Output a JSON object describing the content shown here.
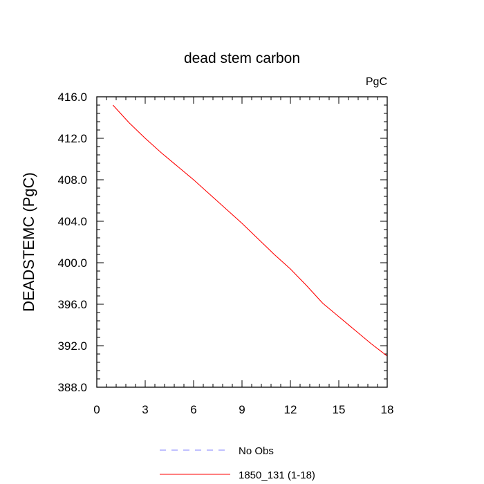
{
  "chart_data": {
    "type": "line",
    "title": "dead stem carbon",
    "units_label": "PgC",
    "xlabel": "",
    "ylabel": "DEADSTEMC  (PgC)",
    "xlim": [
      0,
      18
    ],
    "ylim": [
      388,
      416
    ],
    "x_ticks": [
      0,
      3,
      6,
      9,
      12,
      15,
      18
    ],
    "x_tick_labels": [
      "0",
      "3",
      "6",
      "9",
      "12",
      "15",
      "18"
    ],
    "y_ticks": [
      388,
      392,
      396,
      400,
      404,
      408,
      412,
      416
    ],
    "y_tick_labels": [
      "388.0",
      "392.0",
      "396.0",
      "400.0",
      "404.0",
      "408.0",
      "412.0",
      "416.0"
    ],
    "grid": false,
    "legend_position": "bottom",
    "series": [
      {
        "name": "No Obs",
        "color": "#8080ff",
        "dash": "dashed",
        "x": [],
        "y": []
      },
      {
        "name": "1850_131 (1-18)",
        "color": "#ff0000",
        "dash": "solid",
        "x": [
          1,
          2,
          3,
          4,
          5,
          6,
          7,
          8,
          9,
          10,
          11,
          12,
          13,
          14,
          15,
          16,
          17,
          18
        ],
        "y": [
          415.2,
          413.5,
          412.0,
          410.6,
          409.3,
          408.0,
          406.6,
          405.2,
          403.8,
          402.3,
          400.8,
          399.4,
          397.8,
          396.1,
          394.8,
          393.5,
          392.2,
          391.0
        ]
      }
    ]
  }
}
